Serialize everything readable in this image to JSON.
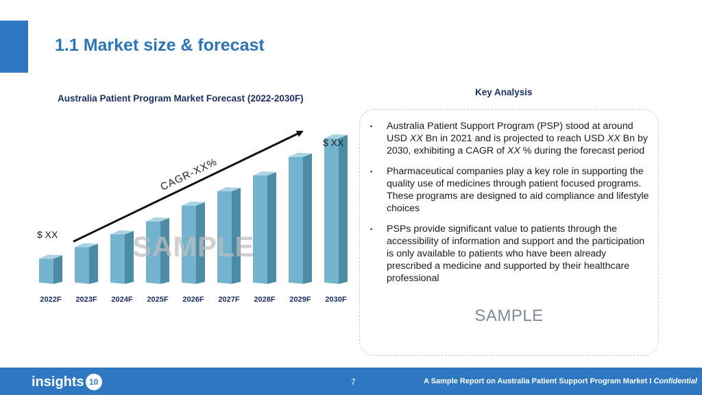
{
  "page": {
    "title": "1.1 Market size & forecast",
    "chart_heading": "Australia Patient Program Market Forecast (2022-2030F)",
    "analysis_heading": "Key Analysis"
  },
  "chart_data": {
    "type": "bar",
    "title": "Australia Patient Program Market Forecast (2022-2030F)",
    "categories": [
      "2022F",
      "2023F",
      "2024F",
      "2025F",
      "2026F",
      "2027F",
      "2028F",
      "2029F",
      "2030F"
    ],
    "values": [
      1,
      1.4,
      1.85,
      2.3,
      2.85,
      3.35,
      3.9,
      4.55,
      5.2
    ],
    "ylim": [
      0,
      5.6
    ],
    "start_label": "$ XX",
    "end_label": "$ XX",
    "trend_label": "CAGR-XX%",
    "watermark": "SAMPLE",
    "grid": false,
    "colors": {
      "front": "#74b3cd",
      "side": "#4b8ba6",
      "top": "#a9d3e3"
    }
  },
  "analysis": {
    "bullet_symbol": "▪",
    "points": [
      {
        "parts": [
          {
            "text": "Australia Patient Support Program (PSP) stood at around USD "
          },
          {
            "text": "XX",
            "italic": true
          },
          {
            "text": " Bn in 2021 and is projected to reach USD "
          },
          {
            "text": "XX",
            "italic": true
          },
          {
            "text": " Bn by 2030, exhibiting a CAGR of "
          },
          {
            "text": "XX",
            "italic": true
          },
          {
            "text": " % during the forecast period"
          }
        ]
      },
      {
        "parts": [
          {
            "text": "Pharmaceutical companies play a key role in supporting the quality use of medicines through patient focused programs. These programs are designed to aid compliance and lifestyle choices"
          }
        ]
      },
      {
        "parts": [
          {
            "text": "PSPs provide significant value to patients through the accessibility of information and support and the participation is only available to patients who have been already prescribed a medicine and supported by their healthcare professional"
          }
        ]
      }
    ],
    "watermark": "SAMPLE"
  },
  "footer": {
    "logo_text": "insights",
    "logo_badge": "10",
    "page_number": "7",
    "text": "A Sample Report on Australia Patient Support Program Market I ",
    "confidential": "Confidential"
  },
  "colors": {
    "brand_blue": "#2e78c2",
    "heading_navy": "#1b2f63",
    "footer_bg": "#2e78c2"
  }
}
